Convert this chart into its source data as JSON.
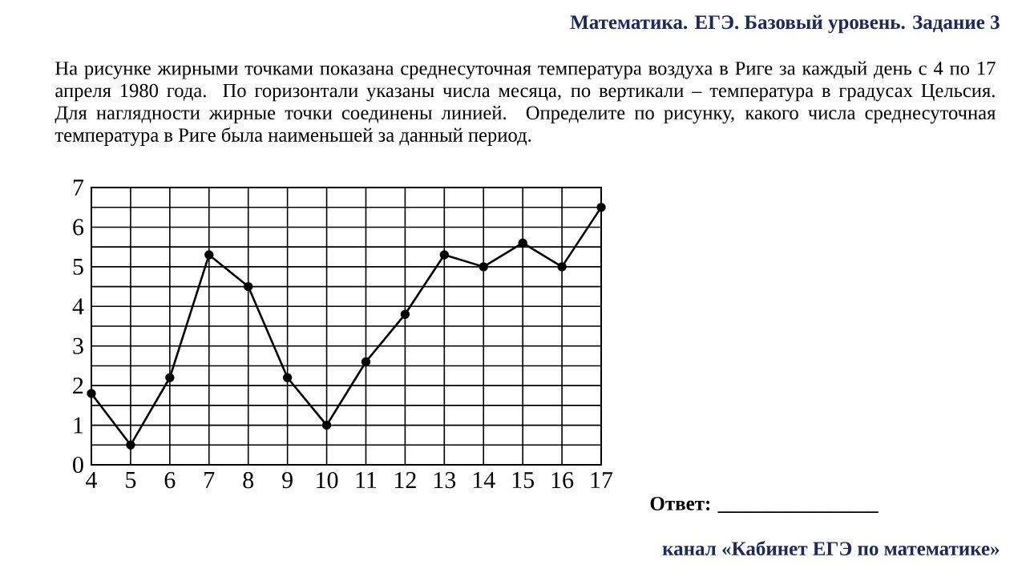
{
  "chart_data": {
    "type": "line",
    "title": "Математика. ЕГЭ. Базовый уровень. Задание 3",
    "subtitle": "На рисунке жирными точками показана среднесуточная температура воздуха в Риге за каждый день с 4 по 17 апреля 1980 года. По горизонтали указаны числа месяца, по вертикали – температура в градусах Цельсия. Для наглядности жирные точки соединены линией. Определите по рисунку, какого числа среднесуточная температура в Риге была наименьшей за данный период.",
    "x": [
      4,
      5,
      6,
      7,
      8,
      9,
      10,
      11,
      12,
      13,
      14,
      15,
      16,
      17
    ],
    "values": [
      1.8,
      0.5,
      2.2,
      5.3,
      4.5,
      2.2,
      1.0,
      2.6,
      3.8,
      5.3,
      5.0,
      5.6,
      5.0,
      6.5
    ],
    "color": "#000000",
    "marker": "circle",
    "line_style": "solid",
    "grid": true,
    "xlim": [
      4,
      17
    ],
    "ylim": [
      0,
      7
    ],
    "xticks": [
      4,
      5,
      6,
      7,
      8,
      9,
      10,
      11,
      12,
      13,
      14,
      15,
      16,
      17
    ],
    "yticks": [
      0,
      {
        "value": 0.5,
        "label": null
      },
      1,
      {
        "value": 1.5,
        "label": null
      },
      2,
      {
        "value": 2.5,
        "label": null
      },
      3,
      {
        "value": 3.5,
        "label": null
      },
      4,
      {
        "value": 4.5,
        "label": null
      },
      5,
      {
        "value": 5.5,
        "label": null
      },
      6,
      {
        "value": 6.5,
        "label": null
      },
      7
    ],
    "annotations": [
      "Ответ: ________________",
      "канал «Кабинет ЕГЭ по математике»"
    ]
  }
}
